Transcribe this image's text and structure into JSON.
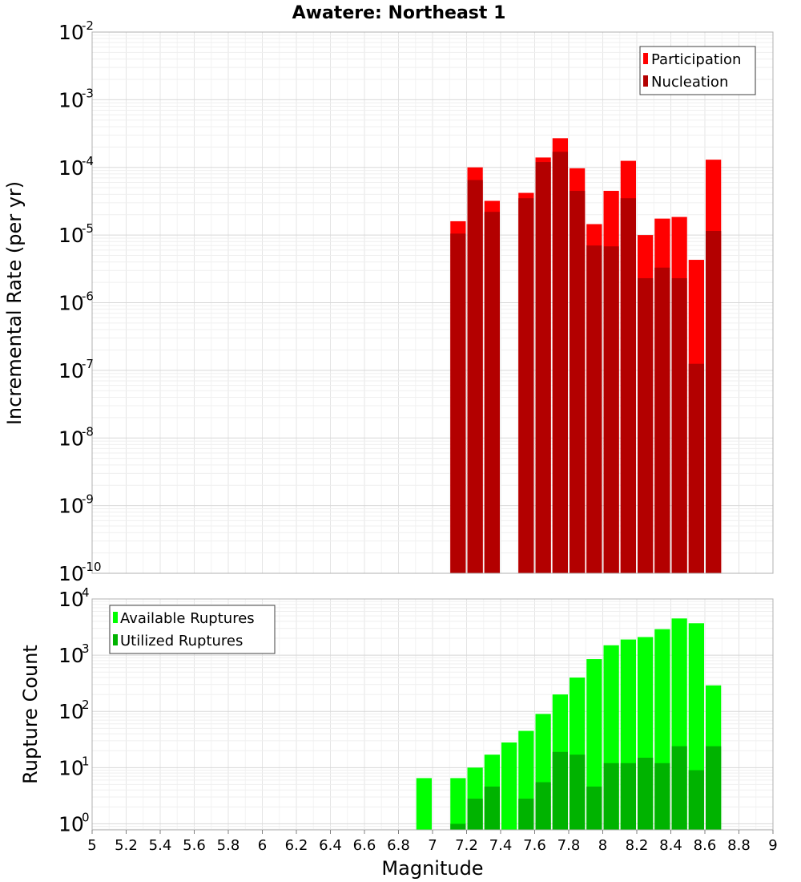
{
  "title": "Awatere: Northeast 1",
  "chart_data": [
    {
      "type": "bar",
      "title": "Awatere: Northeast 1",
      "xlabel": "Magnitude",
      "ylabel": "Incremental Rate (per yr)",
      "yscale": "log",
      "ylim": [
        1e-10,
        0.01
      ],
      "xlim": [
        5,
        9
      ],
      "bin_width": 0.1,
      "grid": true,
      "legend_position": "top-right",
      "y_tick_labels": [
        {
          "base": "10",
          "exp": "-2"
        },
        {
          "base": "10",
          "exp": "-3"
        },
        {
          "base": "10",
          "exp": "-4"
        },
        {
          "base": "10",
          "exp": "-5"
        },
        {
          "base": "10",
          "exp": "-6"
        },
        {
          "base": "10",
          "exp": "-7"
        },
        {
          "base": "10",
          "exp": "-8"
        },
        {
          "base": "10",
          "exp": "-9"
        },
        {
          "base": "10",
          "exp": "-10"
        }
      ],
      "x": [
        7.15,
        7.25,
        7.35,
        7.55,
        7.65,
        7.75,
        7.85,
        7.95,
        8.05,
        8.15,
        8.25,
        8.35,
        8.45,
        8.55,
        8.65
      ],
      "series": [
        {
          "name": "Participation",
          "color": "#ff0000",
          "values": [
            1.6e-05,
            0.0001,
            3.2e-05,
            4.2e-05,
            0.00014,
            0.00027,
            9.7e-05,
            1.45e-05,
            4.5e-05,
            0.000125,
            1e-05,
            1.75e-05,
            1.85e-05,
            4.3e-06,
            0.00013
          ]
        },
        {
          "name": "Nucleation",
          "color": "#b30000",
          "values": [
            1.05e-05,
            6.5e-05,
            2.2e-05,
            3.5e-05,
            0.00012,
            0.00017,
            4.5e-05,
            7e-06,
            6.8e-06,
            3.5e-05,
            2.3e-06,
            3.3e-06,
            2.3e-06,
            1.25e-07,
            1.15e-05
          ]
        }
      ]
    },
    {
      "type": "bar",
      "xlabel": "Magnitude",
      "ylabel": "Rupture Count",
      "yscale": "log",
      "ylim": [
        0.78,
        10000
      ],
      "xlim": [
        5,
        9
      ],
      "bin_width": 0.1,
      "grid": true,
      "legend_position": "top-left",
      "x_tick_labels": [
        "5",
        "5.2",
        "5.4",
        "5.6",
        "5.8",
        "6",
        "6.2",
        "6.4",
        "6.6",
        "6.8",
        "7",
        "7.2",
        "7.4",
        "7.6",
        "7.8",
        "8",
        "8.2",
        "8.4",
        "8.6",
        "8.8",
        "9"
      ],
      "y_tick_labels": [
        {
          "base": "10",
          "exp": "0"
        },
        {
          "base": "10",
          "exp": "1"
        },
        {
          "base": "10",
          "exp": "2"
        },
        {
          "base": "10",
          "exp": "3"
        },
        {
          "base": "10",
          "exp": "4"
        }
      ],
      "x": [
        6.95,
        7.15,
        7.25,
        7.35,
        7.45,
        7.55,
        7.65,
        7.75,
        7.85,
        7.95,
        8.05,
        8.15,
        8.25,
        8.35,
        8.45,
        8.55,
        8.65
      ],
      "series": [
        {
          "name": "Available Ruptures",
          "color": "#00ff00",
          "values": [
            6.5,
            6.5,
            10,
            17,
            28,
            45,
            90,
            200,
            400,
            850,
            1500,
            1900,
            2100,
            2900,
            4500,
            3700,
            290
          ]
        },
        {
          "name": "Utilized Ruptures",
          "color": "#00b300",
          "values": [
            0,
            1,
            2.8,
            4.6,
            0,
            2.8,
            5.5,
            19,
            17,
            4.6,
            12,
            12,
            15,
            12,
            24,
            9,
            24
          ]
        }
      ]
    }
  ]
}
